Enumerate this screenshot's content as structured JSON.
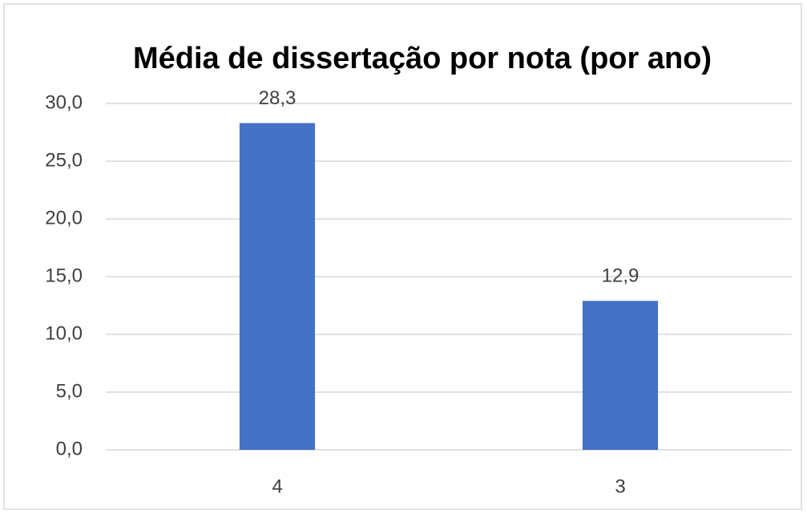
{
  "chart_data": {
    "type": "bar",
    "title": "Média de dissertação por nota (por ano)",
    "categories": [
      "4",
      "3"
    ],
    "values": [
      28.3,
      12.9
    ],
    "value_labels": [
      "28,3",
      "12,9"
    ],
    "color": "#4472c4",
    "ylim": [
      0,
      30
    ],
    "yticks": [
      {
        "value": 0,
        "label": "0,0"
      },
      {
        "value": 5,
        "label": "5,0"
      },
      {
        "value": 10,
        "label": "10,0"
      },
      {
        "value": 15,
        "label": "15,0"
      },
      {
        "value": 20,
        "label": "20,0"
      },
      {
        "value": 25,
        "label": "25,0"
      },
      {
        "value": 30,
        "label": "30,0"
      }
    ],
    "grid": true
  }
}
